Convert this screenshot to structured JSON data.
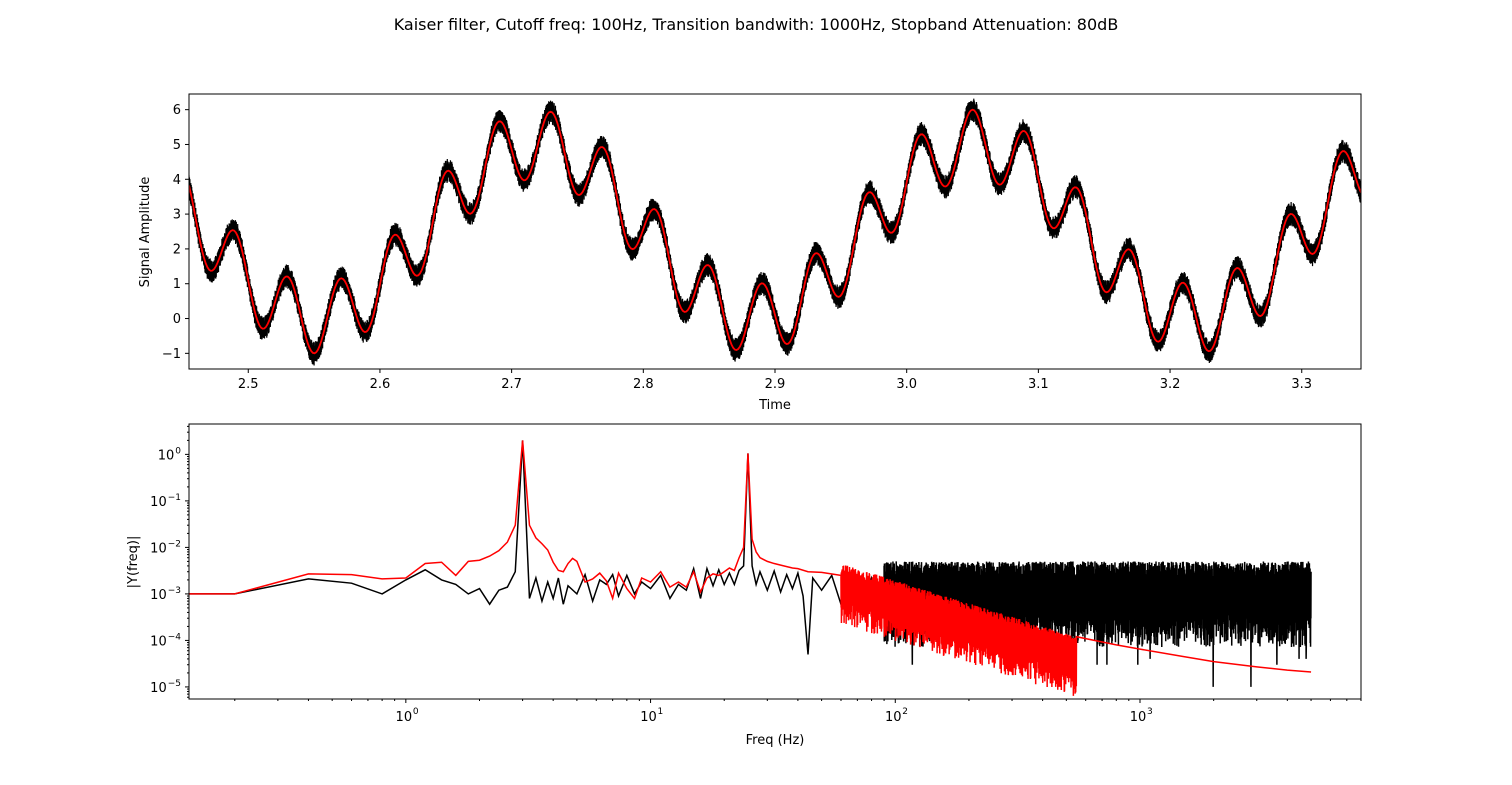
{
  "figure": {
    "title": "Kaiser filter, Cutoff freq: 100Hz, Transition bandwith: 1000Hz, Stopband Attenuation: 80dB"
  },
  "chart_data": [
    {
      "type": "line",
      "xlabel": "Time",
      "ylabel": "Signal Amplitude",
      "xlim": [
        2.455,
        3.345
      ],
      "ylim": [
        -1.45,
        6.45
      ],
      "xticks": [
        2.5,
        2.6,
        2.7,
        2.8,
        2.9,
        3.0,
        3.1,
        3.2,
        3.3
      ],
      "xtick_labels": [
        "2.5",
        "2.6",
        "2.7",
        "2.8",
        "2.9",
        "3.0",
        "3.1",
        "3.2",
        "3.3"
      ],
      "yticks": [
        -1,
        0,
        1,
        2,
        3,
        4,
        5,
        6
      ],
      "ytick_labels": [
        "−1",
        "0",
        "1",
        "2",
        "3",
        "4",
        "5",
        "6"
      ],
      "grid": false,
      "series": [
        {
          "color": "#000000",
          "model": {
            "offset": 2.5,
            "a3": 2.5,
            "f3": 3,
            "p3": 0.6,
            "a25": 1.0,
            "f25": 25,
            "noise_band": 0.35
          }
        },
        {
          "color": "#ff0000",
          "model": {
            "offset": 2.5,
            "a3": 2.5,
            "f3": 3,
            "p3": 0.6,
            "a25": 1.0,
            "f25": 25,
            "noise_band": 0.0
          }
        }
      ]
    },
    {
      "type": "line",
      "xscale": "log",
      "yscale": "log",
      "xlabel": "Freq (Hz)",
      "ylabel": "|Y(freq)|",
      "xlim": [
        0.13,
        8000
      ],
      "ylim": [
        5.5e-06,
        4.5
      ],
      "xticks": [
        1,
        10,
        100,
        1000
      ],
      "xtick_labels": [
        "10",
        "10",
        "10",
        "10"
      ],
      "xtick_exponents": [
        "0",
        "1",
        "2",
        "3"
      ],
      "yticks": [
        1e-05,
        0.0001,
        0.001,
        0.01,
        0.1,
        1
      ],
      "ytick_labels": [
        "10",
        "10",
        "10",
        "10",
        "10",
        "10"
      ],
      "ytick_exponents": [
        "−5",
        "−4",
        "−3",
        "−2",
        "−1",
        "0"
      ],
      "grid": false,
      "series": [
        {
          "color": "#000000",
          "points": [
            [
              0.13,
              0.001
            ],
            [
              0.2,
              0.001
            ],
            [
              0.4,
              0.0021
            ],
            [
              0.6,
              0.0017
            ],
            [
              0.8,
              0.001
            ],
            [
              1.0,
              0.002
            ],
            [
              1.2,
              0.0033
            ],
            [
              1.4,
              0.002
            ],
            [
              1.6,
              0.0016
            ],
            [
              1.8,
              0.001
            ],
            [
              2.0,
              0.0013
            ],
            [
              2.2,
              0.0006
            ],
            [
              2.4,
              0.0012
            ],
            [
              2.6,
              0.0014
            ],
            [
              2.8,
              0.003
            ],
            [
              3.0,
              2.0
            ],
            [
              3.2,
              0.0008
            ],
            [
              3.4,
              0.0022
            ],
            [
              3.6,
              0.0007
            ],
            [
              3.8,
              0.0018
            ],
            [
              4.0,
              0.0008
            ],
            [
              4.2,
              0.0022
            ],
            [
              4.4,
              0.0006
            ],
            [
              4.6,
              0.0015
            ],
            [
              5.0,
              0.001
            ],
            [
              5.4,
              0.0026
            ],
            [
              5.8,
              0.0007
            ],
            [
              6.2,
              0.002
            ],
            [
              6.6,
              0.0016
            ],
            [
              7.0,
              0.0026
            ],
            [
              7.4,
              0.0009
            ],
            [
              8.0,
              0.0025
            ],
            [
              8.6,
              0.001
            ],
            [
              9.2,
              0.0018
            ],
            [
              10.0,
              0.0013
            ],
            [
              11.0,
              0.0025
            ],
            [
              12.0,
              0.0008
            ],
            [
              13.0,
              0.0016
            ],
            [
              14.0,
              0.0012
            ],
            [
              15.0,
              0.0035
            ],
            [
              16.0,
              0.0008
            ],
            [
              17.0,
              0.0035
            ],
            [
              18.0,
              0.0015
            ],
            [
              19.0,
              0.0033
            ],
            [
              20.0,
              0.0016
            ],
            [
              21.0,
              0.0028
            ],
            [
              22.0,
              0.0016
            ],
            [
              23.0,
              0.0032
            ],
            [
              24.0,
              0.004
            ],
            [
              25.0,
              1.05
            ],
            [
              26.0,
              0.004
            ],
            [
              27.0,
              0.0016
            ],
            [
              28.0,
              0.003
            ],
            [
              30.0,
              0.0012
            ],
            [
              32.0,
              0.0031
            ],
            [
              34.0,
              0.0011
            ],
            [
              36.0,
              0.0026
            ],
            [
              38.0,
              0.0013
            ],
            [
              40.0,
              0.0028
            ],
            [
              42.0,
              0.0009
            ],
            [
              44.0,
              5e-05
            ],
            [
              46.0,
              0.0022
            ],
            [
              50.0,
              0.0012
            ],
            [
              55.0,
              0.0025
            ],
            [
              60.0,
              0.0006
            ],
            [
              66.0,
              0.0022
            ],
            [
              72.0,
              0.0004
            ],
            [
              80.0,
              0.0022
            ],
            [
              90.0,
              0.0003
            ]
          ],
          "noise_region": {
            "from": 90,
            "to": 5000,
            "upper": 0.005,
            "lower": 0.00012,
            "dips": [
              [
                150,
                3e-05
              ],
              [
                400,
                3e-05
              ],
              [
                850,
                1e-05
              ],
              [
                1700,
                4e-05
              ]
            ]
          }
        },
        {
          "color": "#ff0000",
          "points": [
            [
              0.13,
              0.001
            ],
            [
              0.2,
              0.001
            ],
            [
              0.4,
              0.0027
            ],
            [
              0.6,
              0.0026
            ],
            [
              0.8,
              0.0021
            ],
            [
              1.0,
              0.0022
            ],
            [
              1.2,
              0.0045
            ],
            [
              1.4,
              0.0048
            ],
            [
              1.6,
              0.0025
            ],
            [
              1.8,
              0.005
            ],
            [
              2.0,
              0.0053
            ],
            [
              2.2,
              0.0065
            ],
            [
              2.4,
              0.0085
            ],
            [
              2.6,
              0.013
            ],
            [
              2.8,
              0.03
            ],
            [
              3.0,
              2.0
            ],
            [
              3.2,
              0.03
            ],
            [
              3.4,
              0.016
            ],
            [
              3.6,
              0.012
            ],
            [
              3.8,
              0.0088
            ],
            [
              4.0,
              0.0048
            ],
            [
              4.2,
              0.0032
            ],
            [
              4.4,
              0.003
            ],
            [
              4.6,
              0.0045
            ],
            [
              4.8,
              0.0058
            ],
            [
              5.0,
              0.005
            ],
            [
              5.4,
              0.0018
            ],
            [
              5.8,
              0.0021
            ],
            [
              6.2,
              0.0028
            ],
            [
              6.6,
              0.0019
            ],
            [
              7.0,
              0.0008
            ],
            [
              7.4,
              0.0028
            ],
            [
              8.0,
              0.0013
            ],
            [
              8.6,
              0.0008
            ],
            [
              9.2,
              0.0022
            ],
            [
              10.0,
              0.0018
            ],
            [
              11.0,
              0.003
            ],
            [
              12.0,
              0.0014
            ],
            [
              13.0,
              0.0018
            ],
            [
              14.0,
              0.0014
            ],
            [
              15.0,
              0.003
            ],
            [
              16.0,
              0.0011
            ],
            [
              17.0,
              0.0022
            ],
            [
              18.0,
              0.0027
            ],
            [
              19.0,
              0.0025
            ],
            [
              20.0,
              0.003
            ],
            [
              21.0,
              0.0036
            ],
            [
              22.0,
              0.0032
            ],
            [
              23.0,
              0.006
            ],
            [
              24.0,
              0.01
            ],
            [
              25.0,
              1.05
            ],
            [
              26.0,
              0.015
            ],
            [
              27.0,
              0.008
            ],
            [
              28.0,
              0.006
            ],
            [
              30.0,
              0.005
            ],
            [
              32.0,
              0.0045
            ],
            [
              35.0,
              0.004
            ],
            [
              38.0,
              0.0036
            ],
            [
              40.0,
              0.0035
            ],
            [
              44.0,
              0.003
            ],
            [
              50.0,
              0.0029
            ],
            [
              60.0,
              0.0025
            ]
          ],
          "noise_region": {
            "from": 60,
            "to": 550,
            "upper_start": 0.0045,
            "upper_end": 0.00012,
            "depth_factor": 8,
            "dips": [
              [
                75,
                0.0002
              ],
              [
                150,
                0.00012
              ],
              [
                300,
                4e-05
              ],
              [
                400,
                1e-05
              ]
            ]
          },
          "tail": [
            [
              550,
              0.00012
            ],
            [
              800,
              8e-05
            ],
            [
              1000,
              6.5e-05
            ],
            [
              1500,
              4.5e-05
            ],
            [
              2000,
              3.5e-05
            ],
            [
              3000,
              2.7e-05
            ],
            [
              4000,
              2.3e-05
            ],
            [
              5000,
              2.1e-05
            ]
          ]
        }
      ]
    }
  ]
}
